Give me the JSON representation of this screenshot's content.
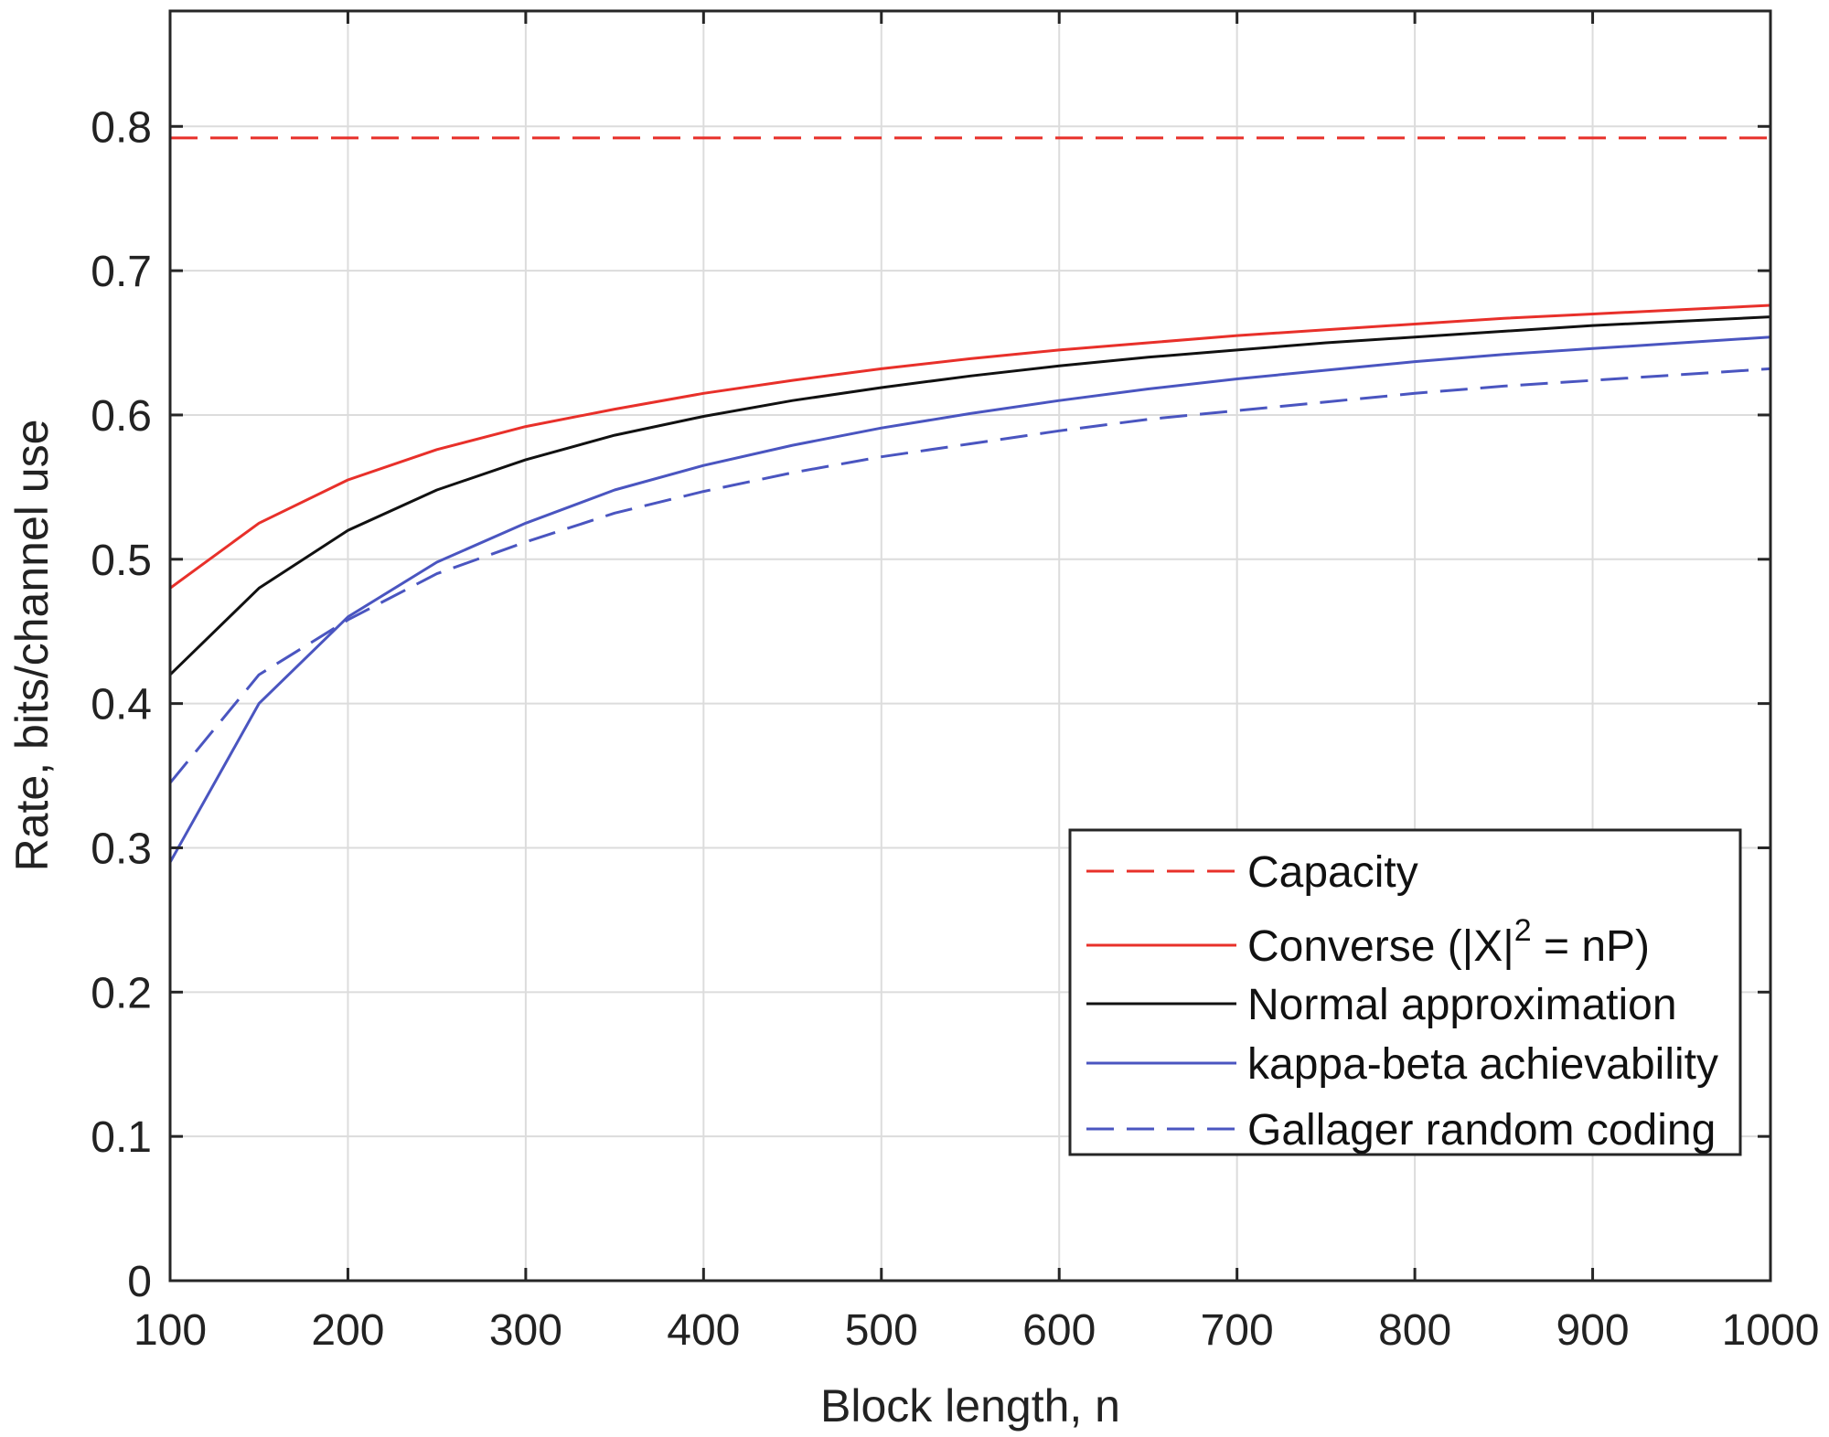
{
  "chart_data": {
    "type": "line",
    "xlabel": "Block length, n",
    "ylabel": "Rate, bits/channel use",
    "xlim": [
      100,
      1000
    ],
    "ylim": [
      0,
      0.88
    ],
    "xticks": [
      100,
      200,
      300,
      400,
      500,
      600,
      700,
      800,
      900,
      1000
    ],
    "yticks": [
      0,
      0.1,
      0.2,
      0.3,
      0.4,
      0.5,
      0.6,
      0.7,
      0.8
    ],
    "ytick_labels": [
      "0",
      "0.1",
      "0.2",
      "0.3",
      "0.4",
      "0.5",
      "0.6",
      "0.7",
      "0.8"
    ],
    "grid": true,
    "legend_position": "bottom-right",
    "series": [
      {
        "name": "Capacity",
        "color": "#e8302a",
        "style": "dashed",
        "x": [
          100,
          1000
        ],
        "y": [
          0.792,
          0.792
        ]
      },
      {
        "name": "Converse (|X|",
        "name_superscript": "2",
        "name_suffix": " = nP)",
        "color": "#e8302a",
        "style": "solid",
        "x": [
          100,
          150,
          200,
          250,
          300,
          350,
          400,
          450,
          500,
          550,
          600,
          650,
          700,
          750,
          800,
          850,
          900,
          950,
          1000
        ],
        "y": [
          0.48,
          0.525,
          0.555,
          0.576,
          0.592,
          0.604,
          0.615,
          0.624,
          0.632,
          0.639,
          0.645,
          0.65,
          0.655,
          0.659,
          0.663,
          0.667,
          0.67,
          0.673,
          0.676
        ]
      },
      {
        "name": "Normal approximation",
        "color": "#111111",
        "style": "solid",
        "x": [
          100,
          150,
          200,
          250,
          300,
          350,
          400,
          450,
          500,
          550,
          600,
          650,
          700,
          750,
          800,
          850,
          900,
          950,
          1000
        ],
        "y": [
          0.42,
          0.48,
          0.52,
          0.548,
          0.569,
          0.586,
          0.599,
          0.61,
          0.619,
          0.627,
          0.634,
          0.64,
          0.645,
          0.65,
          0.654,
          0.658,
          0.662,
          0.665,
          0.668
        ]
      },
      {
        "name": "kappa-beta achievability",
        "color": "#4a55c0",
        "style": "solid",
        "x": [
          100,
          150,
          200,
          250,
          300,
          350,
          400,
          450,
          500,
          550,
          600,
          650,
          700,
          750,
          800,
          850,
          900,
          950,
          1000
        ],
        "y": [
          0.29,
          0.4,
          0.46,
          0.498,
          0.525,
          0.548,
          0.565,
          0.579,
          0.591,
          0.601,
          0.61,
          0.618,
          0.625,
          0.631,
          0.637,
          0.642,
          0.646,
          0.65,
          0.654
        ]
      },
      {
        "name": "Gallager random coding",
        "color": "#4a55c0",
        "style": "dashed",
        "x": [
          100,
          150,
          200,
          250,
          300,
          350,
          400,
          450,
          500,
          550,
          600,
          650,
          700,
          750,
          800,
          850,
          900,
          950,
          1000
        ],
        "y": [
          0.345,
          0.42,
          0.458,
          0.49,
          0.512,
          0.532,
          0.547,
          0.56,
          0.571,
          0.58,
          0.589,
          0.597,
          0.603,
          0.609,
          0.615,
          0.62,
          0.624,
          0.628,
          0.632
        ]
      }
    ]
  }
}
